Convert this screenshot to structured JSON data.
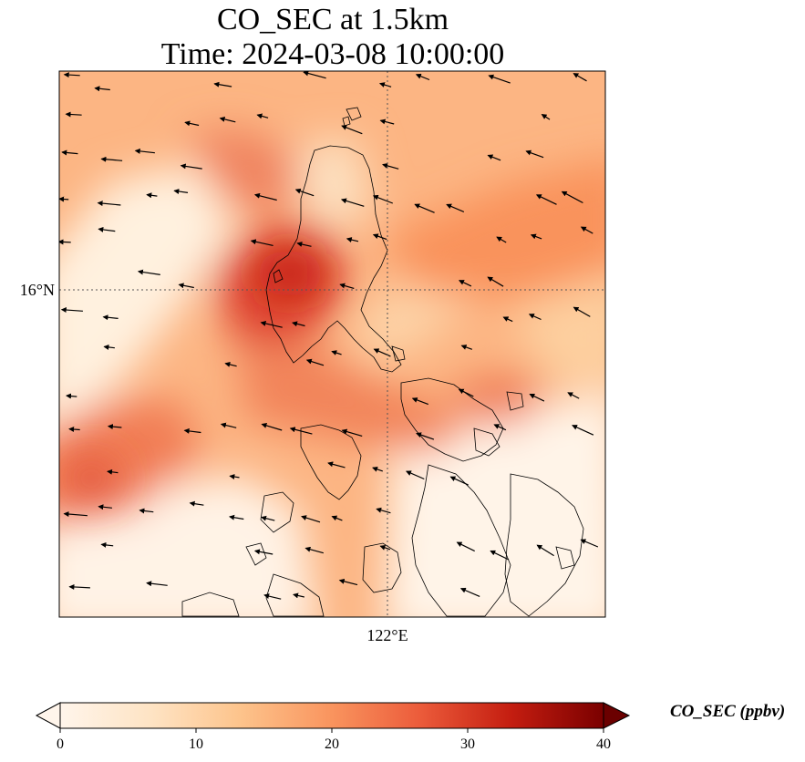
{
  "title": {
    "line1": "CO_SEC at 1.5km",
    "line2": "Time: 2024-03-08 10:00:00"
  },
  "map": {
    "lat_label": "16°N",
    "lon_label": "122°E",
    "colormap": [
      "#fff5eb",
      "#fee6ce",
      "#fdd0a2",
      "#fdae6b",
      "#fd8d3c",
      "#f16913",
      "#d94801",
      "#a63603",
      "#7f2704"
    ]
  },
  "colorbar": {
    "label": "CO_SEC (ppbv)",
    "min": 0,
    "max": 40,
    "ticks": [
      "0",
      "10",
      "20",
      "30",
      "40"
    ],
    "colors": [
      "#fff5eb",
      "#fdd9a8",
      "#fcad7d",
      "#f5774f",
      "#de3a29",
      "#b50f0c",
      "#6b0000"
    ]
  }
}
